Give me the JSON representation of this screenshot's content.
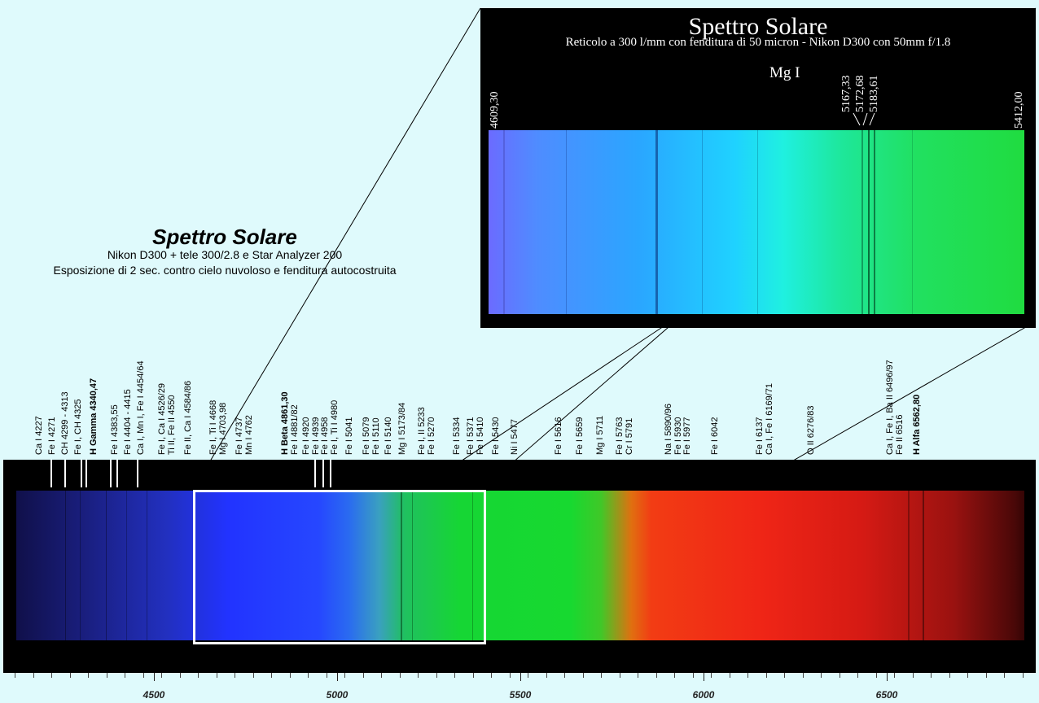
{
  "zoom": {
    "title": "Spettro Solare",
    "subtitle": "Reticolo a 300 l/mm con fenditura di 50 micron - Nikon D300 con 50mm f/1.8",
    "element_label": "Mg I",
    "range_start": "4609,30",
    "range_end": "5412,00",
    "mg_lines": [
      "5167,33",
      "5172,68",
      "5183,61"
    ]
  },
  "main": {
    "title": "Spettro Solare",
    "subtitle_1": "Nikon D300 + tele 300/2.8 e Star Analyzer 200",
    "subtitle_2": "Esposizione di 2 sec. contro cielo nuvoloso e fenditura autocostruita"
  },
  "labels": [
    [
      "Ca I  4227"
    ],
    [
      "Fe I  4271"
    ],
    [
      "CH  4299 - 4313"
    ],
    [
      "Fe I, CH  4325"
    ],
    [
      "H Gamma  4340,47"
    ],
    [
      "Fe I  4383,55"
    ],
    [
      "Fe I  4404 - 4415"
    ],
    [
      "Ca I, Mn I, Fe I  4454/64"
    ],
    [
      "Fe I, Ca I  4526/29",
      "Ti II, Fe II  4550"
    ],
    [
      "Fe II, Ca I  4584/86"
    ],
    [
      "Fe I, Ti I  4668",
      "Mg I  4703,98"
    ],
    [
      "Fe I  4737",
      "Mn I  4762"
    ],
    [
      "H Beta  4861,30",
      "Fe I  4881/82"
    ],
    [
      "Fe I  4920",
      "Fe I  4939"
    ],
    [
      "Fe I  4958",
      "Fe I, Ti I  4980"
    ],
    [
      "Fe I  5041"
    ],
    [
      "Fe I  5079",
      "Fe I  5110"
    ],
    [
      "Fe I  5140"
    ],
    [
      "Mg I  5173/84"
    ],
    [
      "Fe I, II  5233",
      "Fe I  5270"
    ],
    [
      "Fe I  5334"
    ],
    [
      "Fe I  5371",
      "Fe I  5410"
    ],
    [
      "Fe I  5430"
    ],
    [
      "Ni I  5477"
    ],
    [
      "Fe I  5616"
    ],
    [
      "Fe I  5659"
    ],
    [
      "Mg I  5711"
    ],
    [
      "Fe I  5763",
      "Cr I  5791"
    ],
    [
      "Na I  5890/96",
      "Fe I  5930"
    ],
    [
      "Fe I  5977"
    ],
    [
      "Fe I  6042"
    ],
    [
      "Fe I  6137",
      "Ca I, Fe I  6169/71"
    ],
    [
      "O II  6276/83"
    ],
    [
      "Ca I, Fe I, Ba II  6496/97",
      "Fe II  6516"
    ],
    [
      "H Alfa  6562,80"
    ]
  ],
  "axis_ticks": [
    "4500",
    "5000",
    "5500",
    "6000",
    "6500"
  ],
  "colors": {
    "background": "#dffafc",
    "strip": "#000000",
    "frame": "#ffffff"
  }
}
